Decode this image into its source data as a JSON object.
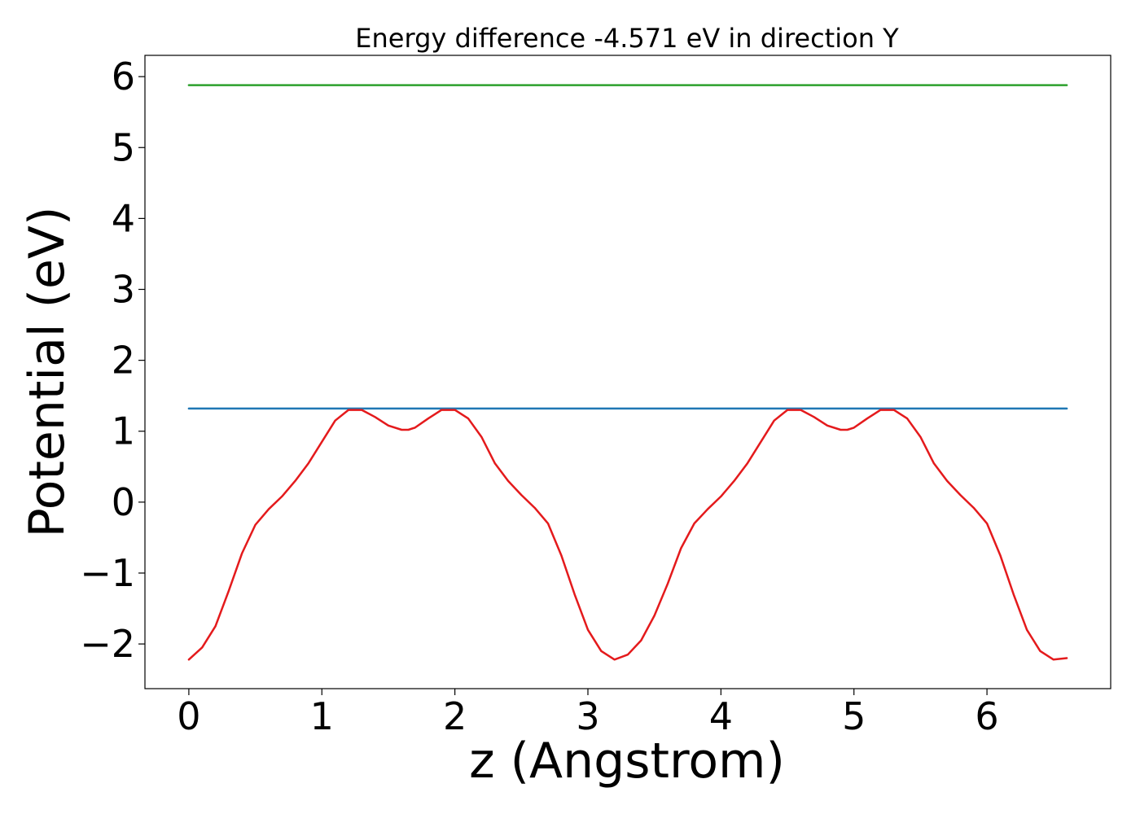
{
  "chart_data": {
    "type": "line",
    "title": "Energy difference -4.571 eV in direction Y",
    "xlabel": "z (Angstrom)",
    "ylabel": "Potential (eV)",
    "xlim": [
      -0.33,
      6.93
    ],
    "ylim": [
      -2.63,
      6.3
    ],
    "xticks": [
      0,
      1,
      2,
      3,
      4,
      5,
      6
    ],
    "xtick_labels": [
      "0",
      "1",
      "2",
      "3",
      "4",
      "5",
      "6"
    ],
    "yticks": [
      -2,
      -1,
      0,
      1,
      2,
      3,
      4,
      5,
      6
    ],
    "ytick_labels": [
      "−2",
      "−1",
      "0",
      "1",
      "2",
      "3",
      "4",
      "5",
      "6"
    ],
    "grid": false,
    "series": [
      {
        "color": "#2ca02c",
        "x": [
          0,
          6.6
        ],
        "y": [
          5.88,
          5.88
        ]
      },
      {
        "color": "#1f77b4",
        "x": [
          0,
          6.6
        ],
        "y": [
          1.32,
          1.32
        ]
      },
      {
        "color": "#e41a1c",
        "x": [
          0,
          0.1,
          0.2,
          0.3,
          0.4,
          0.5,
          0.6,
          0.7,
          0.8,
          0.9,
          1.0,
          1.1,
          1.2,
          1.3,
          1.4,
          1.5,
          1.6,
          1.65,
          1.7,
          1.8,
          1.9,
          2.0,
          2.1,
          2.2,
          2.3,
          2.4,
          2.5,
          2.6,
          2.7,
          2.8,
          2.9,
          3.0,
          3.1,
          3.2,
          3.3,
          3.4,
          3.5,
          3.6,
          3.7,
          3.8,
          3.9,
          4.0,
          4.1,
          4.2,
          4.3,
          4.4,
          4.5,
          4.6,
          4.7,
          4.8,
          4.9,
          4.95,
          5.0,
          5.1,
          5.2,
          5.3,
          5.4,
          5.5,
          5.6,
          5.7,
          5.8,
          5.9,
          6.0,
          6.1,
          6.2,
          6.3,
          6.4,
          6.5,
          6.6
        ],
        "y": [
          -2.22,
          -2.05,
          -1.75,
          -1.25,
          -0.72,
          -0.32,
          -0.1,
          0.08,
          0.3,
          0.55,
          0.85,
          1.15,
          1.3,
          1.3,
          1.2,
          1.08,
          1.02,
          1.02,
          1.05,
          1.18,
          1.3,
          1.3,
          1.18,
          0.92,
          0.55,
          0.3,
          0.1,
          -0.08,
          -0.3,
          -0.75,
          -1.3,
          -1.8,
          -2.1,
          -2.22,
          -2.15,
          -1.95,
          -1.6,
          -1.15,
          -0.65,
          -0.3,
          -0.1,
          0.08,
          0.3,
          0.55,
          0.85,
          1.15,
          1.3,
          1.3,
          1.2,
          1.08,
          1.02,
          1.02,
          1.05,
          1.18,
          1.3,
          1.3,
          1.18,
          0.92,
          0.55,
          0.3,
          0.1,
          -0.08,
          -0.3,
          -0.75,
          -1.3,
          -1.8,
          -2.1,
          -2.22,
          -2.2
        ]
      }
    ]
  }
}
